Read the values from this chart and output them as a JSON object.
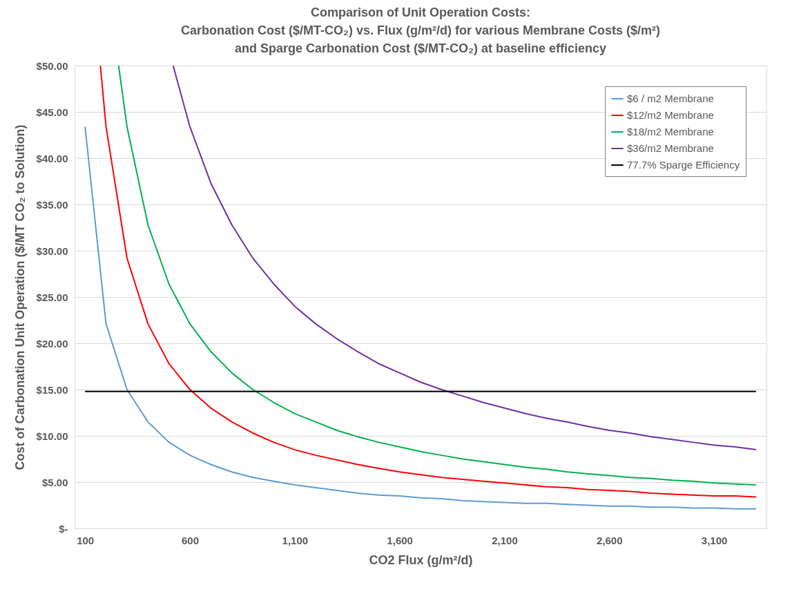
{
  "chart_data": {
    "type": "line",
    "title": "Comparison of Unit Operation Costs:\nCarbonation Cost ($/MT-CO₂) vs. Flux (g/m²/d) for various Membrane Costs ($/m²)\nand Sparge Carbonation Cost ($/MT-CO₂) at baseline efficiency",
    "xlabel": "CO2 Flux (g/m²/d)",
    "ylabel": "Cost of Carbonation Unit Operation ($/MT CO₂ to Solution)",
    "xlim": [
      50,
      3350
    ],
    "xticks": [
      100,
      600,
      {
        "value": 1100,
        "label": "1,100"
      },
      {
        "value": 1600,
        "label": "1,600"
      },
      {
        "value": 2100,
        "label": "2,100"
      },
      {
        "value": 2600,
        "label": "2,600"
      },
      {
        "value": 3100,
        "label": "3,100"
      }
    ],
    "ylim": [
      0,
      50
    ],
    "yticks": [
      {
        "value": 0,
        "label": "$-"
      },
      {
        "value": 5,
        "label": "$5.00"
      },
      {
        "value": 10,
        "label": "$10.00"
      },
      {
        "value": 15,
        "label": "$15.00"
      },
      {
        "value": 20,
        "label": "$20.00"
      },
      {
        "value": 25,
        "label": "$25.00"
      },
      {
        "value": 30,
        "label": "$30.00"
      },
      {
        "value": 35,
        "label": "$35.00"
      },
      {
        "value": 40,
        "label": "$40.00"
      },
      {
        "value": 45,
        "label": "$45.00"
      },
      {
        "value": 50,
        "label": "$50.00"
      }
    ],
    "grid": "y",
    "legend": "top right",
    "marker": "none",
    "line_style": "solid",
    "series": [
      {
        "name": "$6 / m2 Membrane",
        "color": "#5b9bd5",
        "x": [
          100,
          200,
          300,
          400,
          500,
          600,
          700,
          800,
          900,
          1000,
          1100,
          1200,
          1300,
          1400,
          1500,
          1600,
          1700,
          1800,
          1900,
          2000,
          2100,
          2200,
          2300,
          2400,
          2500,
          2600,
          2700,
          2800,
          2900,
          3000,
          3100,
          3200,
          3300
        ],
        "values": [
          43.4,
          22.1,
          15.0,
          11.5,
          9.3,
          7.9,
          6.9,
          6.1,
          5.5,
          5.1,
          4.7,
          4.4,
          4.1,
          3.8,
          3.6,
          3.5,
          3.3,
          3.2,
          3.0,
          2.9,
          2.8,
          2.7,
          2.7,
          2.6,
          2.5,
          2.4,
          2.4,
          2.3,
          2.3,
          2.2,
          2.2,
          2.1,
          2.1
        ]
      },
      {
        "name": "$12/m2 Membrane",
        "color": "#ff0000",
        "x": [
          173,
          200,
          300,
          400,
          500,
          600,
          700,
          800,
          900,
          1000,
          1100,
          1200,
          1300,
          1400,
          1500,
          1600,
          1700,
          1800,
          1900,
          2000,
          2100,
          2200,
          2300,
          2400,
          2500,
          2600,
          2700,
          2800,
          2900,
          3000,
          3100,
          3200,
          3300
        ],
        "values": [
          50,
          43.4,
          29.2,
          22.1,
          17.8,
          15.0,
          13.0,
          11.5,
          10.3,
          9.3,
          8.5,
          7.9,
          7.4,
          6.9,
          6.5,
          6.1,
          5.8,
          5.5,
          5.3,
          5.1,
          4.9,
          4.7,
          4.5,
          4.4,
          4.2,
          4.1,
          4.0,
          3.8,
          3.7,
          3.6,
          3.5,
          3.5,
          3.4
        ]
      },
      {
        "name": "$18/m2 Membrane",
        "color": "#00b050",
        "x": [
          260,
          300,
          400,
          500,
          600,
          700,
          800,
          900,
          1000,
          1100,
          1200,
          1300,
          1400,
          1500,
          1600,
          1700,
          1800,
          1900,
          2000,
          2100,
          2200,
          2300,
          2400,
          2500,
          2600,
          2700,
          2800,
          2900,
          3000,
          3100,
          3200,
          3300
        ],
        "values": [
          50,
          43.4,
          32.8,
          26.4,
          22.1,
          19.1,
          16.8,
          15.0,
          13.6,
          12.4,
          11.5,
          10.6,
          9.9,
          9.3,
          8.8,
          8.3,
          7.9,
          7.5,
          7.2,
          6.9,
          6.6,
          6.4,
          6.1,
          5.9,
          5.7,
          5.5,
          5.4,
          5.2,
          5.1,
          4.9,
          4.8,
          4.7
        ]
      },
      {
        "name": "$36/m2 Membrane",
        "color": "#7030a0",
        "x": [
          520,
          600,
          700,
          800,
          900,
          1000,
          1100,
          1200,
          1300,
          1400,
          1500,
          1600,
          1700,
          1800,
          1900,
          2000,
          2100,
          2200,
          2300,
          2400,
          2500,
          2600,
          2700,
          2800,
          2900,
          3000,
          3100,
          3200,
          3300
        ],
        "values": [
          50,
          43.4,
          37.3,
          32.8,
          29.2,
          26.4,
          24.0,
          22.1,
          20.5,
          19.1,
          17.8,
          16.8,
          15.8,
          15.0,
          14.3,
          13.6,
          13.0,
          12.4,
          11.9,
          11.5,
          11.0,
          10.6,
          10.3,
          9.9,
          9.6,
          9.3,
          9.0,
          8.8,
          8.5
        ]
      },
      {
        "name": "77.7% Sparge Efficiency",
        "color": "#000000",
        "x": [
          100,
          3300
        ],
        "values": [
          14.8,
          14.8
        ]
      }
    ]
  }
}
